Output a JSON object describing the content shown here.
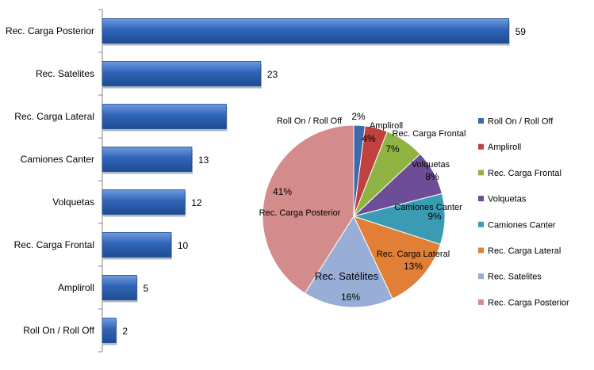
{
  "chart_data": [
    {
      "type": "bar",
      "orientation": "horizontal",
      "categories": [
        "Rec. Carga Posterior",
        "Rec. Satelites",
        "Rec. Carga Lateral",
        "Camiones Canter",
        "Volquetas",
        "Rec. Carga Frontal",
        "Ampliroll",
        "Roll On / Roll Off"
      ],
      "values": [
        59,
        23,
        18,
        13,
        12,
        10,
        5,
        2
      ],
      "data_labels": [
        "59",
        "23",
        "",
        "13",
        "12",
        "10",
        "5",
        "2"
      ],
      "xlim": [
        0,
        61
      ],
      "grid": false,
      "bar_color": "#2f64b6"
    },
    {
      "type": "pie",
      "categories": [
        "Roll On / Roll Off",
        "Ampliroll",
        "Rec. Carga Frontal",
        "Volquetas",
        "Camiones Canter",
        "Rec. Carga Lateral",
        "Rec. Satelites",
        "Rec. Carga Posterior"
      ],
      "slice_labels": [
        "Roll On / Roll Off",
        "Ampliroll",
        "Rec. Carga Frontal",
        "Volquetas",
        "Camiones Canter",
        "Rec. Carga Lateral",
        "Rec. Satélites",
        "Rec. Carga Posterior"
      ],
      "values": [
        2,
        4,
        7,
        8,
        9,
        13,
        16,
        41
      ],
      "percent_labels": [
        "2%",
        "4%",
        "7%",
        "8%",
        "9%",
        "13%",
        "16%",
        "41%"
      ],
      "colors": [
        "#3d6aad",
        "#c0413d",
        "#8fb444",
        "#6d4d96",
        "#3a9cb3",
        "#e07f35",
        "#98aed7",
        "#d38c8b"
      ],
      "legend": [
        "Roll On / Roll Off",
        "Ampliroll",
        "Rec. Carga Frontal",
        "Volquetas",
        "Camiones Canter",
        "Rec. Carga Lateral",
        "Rec. Satelites",
        "Rec. Carga Posterior"
      ],
      "legend_position": "right"
    }
  ]
}
